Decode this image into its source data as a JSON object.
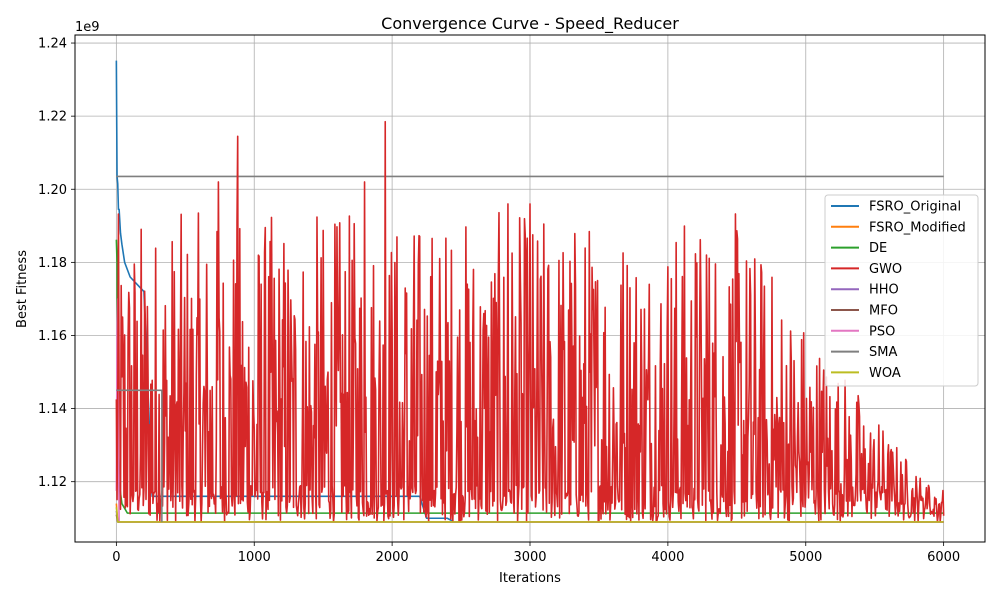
{
  "chart_data": {
    "type": "line",
    "title": "Convergence Curve - Speed_Reducer",
    "xlabel": "Iterations",
    "ylabel": "Best Fitness",
    "y_offset_label": "1e9",
    "xlim": [
      -300,
      6300
    ],
    "ylim": [
      1.1035,
      1.2422
    ],
    "x_ticks": [
      0,
      1000,
      2000,
      3000,
      4000,
      5000,
      6000
    ],
    "x_tick_labels": [
      "0",
      "1000",
      "2000",
      "3000",
      "4000",
      "5000",
      "6000"
    ],
    "y_ticks": [
      1.12,
      1.14,
      1.16,
      1.18,
      1.2,
      1.22,
      1.24
    ],
    "y_tick_labels": [
      "1.12",
      "1.14",
      "1.16",
      "1.18",
      "1.20",
      "1.22",
      "1.24"
    ],
    "grid": true,
    "legend_position": "center-right",
    "series": [
      {
        "name": "FSRO_Original",
        "color": "#1f77b4",
        "x": [
          0,
          5,
          10,
          15,
          20,
          30,
          40,
          60,
          100,
          150,
          200,
          260,
          1300,
          1800,
          2200,
          2250,
          2400,
          2450,
          6000
        ],
        "y": [
          1.2352,
          1.2035,
          1.2015,
          1.1945,
          1.1945,
          1.188,
          1.185,
          1.18,
          1.176,
          1.174,
          1.172,
          1.116,
          1.116,
          1.116,
          1.116,
          1.11,
          1.11,
          1.109,
          1.109
        ]
      },
      {
        "name": "FSRO_Modified",
        "color": "#ff7f0e",
        "x": [
          0,
          10,
          6000
        ],
        "y": [
          1.114,
          1.109,
          1.109
        ]
      },
      {
        "name": "DE",
        "color": "#2ca02c",
        "x": [
          0,
          5,
          10,
          20,
          40,
          80,
          6000
        ],
        "y": [
          1.1862,
          1.18,
          1.13,
          1.12,
          1.114,
          1.1114,
          1.1114
        ]
      },
      {
        "name": "GWO",
        "color": "#d62728",
        "x": [],
        "y": []
      },
      {
        "name": "HHO",
        "color": "#9467bd",
        "x": [
          0,
          10,
          6000
        ],
        "y": [
          1.112,
          1.109,
          1.109
        ]
      },
      {
        "name": "MFO",
        "color": "#8c564b",
        "x": [
          0,
          10,
          6000
        ],
        "y": [
          1.111,
          1.109,
          1.109
        ]
      },
      {
        "name": "PSO",
        "color": "#e377c2",
        "x": [
          0,
          5,
          10,
          15,
          20,
          6000
        ],
        "y": [
          1.1175,
          1.16,
          1.17,
          1.13,
          1.109,
          1.109
        ]
      },
      {
        "name": "SMA",
        "color": "#7f7f7f",
        "x": [
          0,
          6000
        ],
        "y": [
          1.2035,
          1.2035
        ]
      },
      {
        "name": "WOA",
        "color": "#bcbd22",
        "x": [
          0,
          10,
          6000
        ],
        "y": [
          1.113,
          1.109,
          1.109
        ]
      }
    ],
    "extra_segments": [
      {
        "series": "SMA",
        "color": "#7f7f7f",
        "x": [
          0,
          330,
          330
        ],
        "y": [
          1.145,
          1.145,
          1.109
        ]
      }
    ]
  }
}
